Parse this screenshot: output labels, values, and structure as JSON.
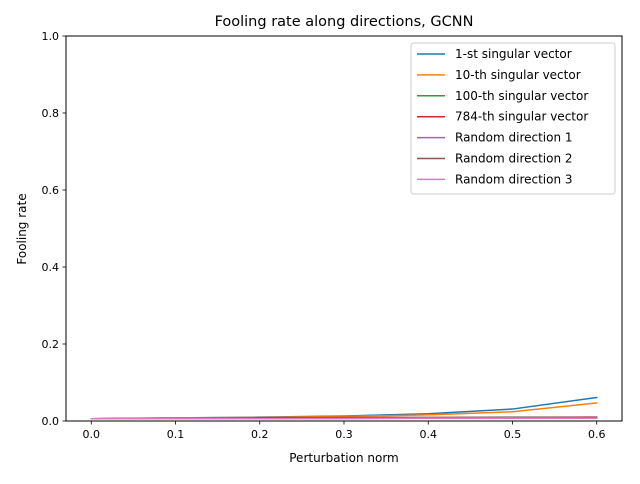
{
  "chart_data": {
    "type": "line",
    "title": "Fooling rate along directions, GCNN",
    "xlabel": "Perturbation norm",
    "ylabel": "Fooling rate",
    "xlim": [
      -0.03,
      0.63
    ],
    "ylim": [
      0,
      1.0
    ],
    "xticks": [
      0.0,
      0.1,
      0.2,
      0.3,
      0.4,
      0.5,
      0.6
    ],
    "xtick_labels": [
      "0.0",
      "0.1",
      "0.2",
      "0.3",
      "0.4",
      "0.5",
      "0.6"
    ],
    "yticks": [
      0.0,
      0.2,
      0.4,
      0.6,
      0.8,
      1.0
    ],
    "ytick_labels": [
      "0.0",
      "0.2",
      "0.4",
      "0.6",
      "0.8",
      "1.0"
    ],
    "grid": false,
    "legend_position": "top-right",
    "x": [
      0.0,
      0.1,
      0.2,
      0.3,
      0.4,
      0.5,
      0.6
    ],
    "series": [
      {
        "name": "1-st singular vector",
        "color": "#1f77b4",
        "values": [
          0.006,
          0.008,
          0.01,
          0.013,
          0.019,
          0.031,
          0.061
        ]
      },
      {
        "name": "10-th singular vector",
        "color": "#ff7f0e",
        "values": [
          0.006,
          0.008,
          0.009,
          0.012,
          0.016,
          0.024,
          0.047
        ]
      },
      {
        "name": "100-th singular vector",
        "color": "#2ca02c",
        "values": [
          0.006,
          0.007,
          0.008,
          0.009,
          0.009,
          0.01,
          0.01
        ]
      },
      {
        "name": "784-th singular vector",
        "color": "#d62728",
        "values": [
          0.006,
          0.007,
          0.008,
          0.009,
          0.009,
          0.009,
          0.01
        ]
      },
      {
        "name": "Random direction 1",
        "color": "#9467bd",
        "values": [
          0.006,
          0.007,
          0.007,
          0.008,
          0.008,
          0.009,
          0.009
        ]
      },
      {
        "name": "Random direction 2",
        "color": "#8c564b",
        "values": [
          0.006,
          0.006,
          0.007,
          0.007,
          0.007,
          0.007,
          0.008
        ]
      },
      {
        "name": "Random direction 3",
        "color": "#e377c2",
        "values": [
          0.006,
          0.006,
          0.006,
          0.006,
          0.007,
          0.007,
          0.007
        ]
      }
    ]
  }
}
